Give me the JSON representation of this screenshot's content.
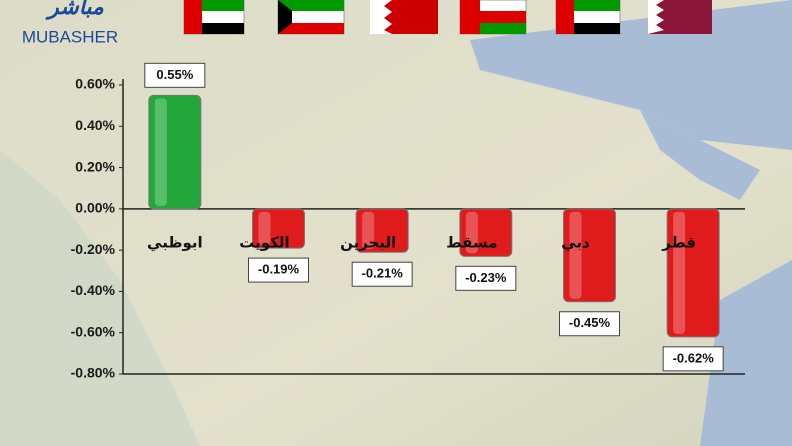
{
  "logo": {
    "arabic": "مباشر",
    "latin": "MUBASHER"
  },
  "chart_data": {
    "type": "bar",
    "categories": [
      "ابوظبي",
      "الكويت",
      "البحرين",
      "مسقط",
      "دبي",
      "قطر"
    ],
    "values": [
      0.55,
      -0.19,
      -0.21,
      -0.23,
      -0.45,
      -0.62
    ],
    "value_labels": [
      "0.55%",
      "-0.19%",
      "-0.21%",
      "-0.23%",
      "-0.45%",
      "-0.62%"
    ],
    "positive_color": "#22a83a",
    "negative_color": "#e01b1b",
    "ylim": [
      -0.8,
      0.6
    ],
    "yticks": [
      {
        "value": 0.6,
        "label": "0.60%"
      },
      {
        "value": 0.4,
        "label": "0.40%"
      },
      {
        "value": 0.2,
        "label": "0.20%"
      },
      {
        "value": 0,
        "label": "0.00%"
      },
      {
        "value": -0.2,
        "label": "-0.20%"
      },
      {
        "value": -0.4,
        "label": "-0.40%"
      },
      {
        "value": -0.6,
        "label": "-0.60%"
      },
      {
        "value": -0.8,
        "label": "-0.80%"
      }
    ]
  }
}
